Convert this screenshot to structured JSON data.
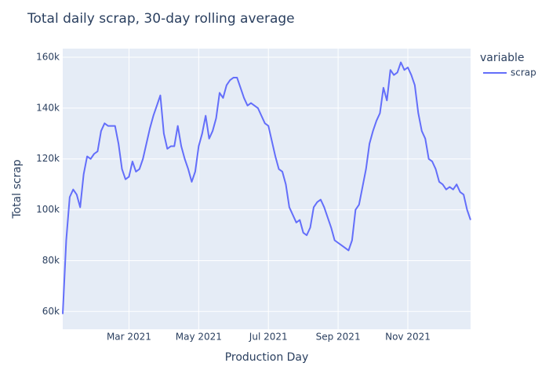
{
  "chart_data": {
    "type": "line",
    "title": "Total daily scrap, 30-day rolling average",
    "x_label": "Production Day",
    "y_label": "Total scrap",
    "legend_title": "variable",
    "legend_position": "right",
    "grid": true,
    "categories": [
      null,
      null,
      null,
      null,
      null,
      null,
      null,
      null,
      null,
      null,
      null,
      null,
      null,
      null,
      null,
      null,
      null,
      null,
      null,
      "Mar 2021",
      null,
      null,
      null,
      null,
      null,
      null,
      null,
      null,
      null,
      null,
      null,
      null,
      null,
      null,
      null,
      null,
      null,
      null,
      null,
      "May 2021",
      null,
      null,
      null,
      null,
      null,
      null,
      null,
      null,
      null,
      null,
      null,
      null,
      null,
      null,
      null,
      null,
      null,
      null,
      null,
      "Jul 2021",
      null,
      null,
      null,
      null,
      null,
      null,
      null,
      null,
      null,
      null,
      null,
      null,
      null,
      null,
      null,
      null,
      null,
      null,
      null,
      "Sep 2021",
      null,
      null,
      null,
      null,
      null,
      null,
      null,
      null,
      null,
      null,
      null,
      null,
      null,
      null,
      null,
      null,
      null,
      null,
      null,
      "Nov 2021",
      null,
      null,
      null,
      null,
      null,
      null,
      null,
      null,
      null,
      null,
      null,
      null,
      null,
      null,
      null,
      null,
      null,
      null
    ],
    "series": [
      {
        "name": "scrap",
        "color": "#636efa",
        "values": [
          59000,
          88000,
          105000,
          108000,
          106000,
          101000,
          114000,
          121000,
          120000,
          122000,
          123000,
          131000,
          134000,
          133000,
          133000,
          133000,
          126000,
          116000,
          112000,
          113000,
          119000,
          115000,
          116000,
          120000,
          126000,
          132000,
          137000,
          141000,
          145000,
          130000,
          124000,
          125000,
          125000,
          133000,
          125000,
          120000,
          116000,
          111000,
          115000,
          125000,
          130000,
          137000,
          128000,
          131000,
          136000,
          146000,
          144000,
          149000,
          151000,
          152000,
          152000,
          148000,
          144000,
          141000,
          142000,
          141000,
          140000,
          137000,
          134000,
          133000,
          127000,
          121000,
          116000,
          115000,
          110000,
          101000,
          98000,
          95000,
          96000,
          91000,
          90000,
          93000,
          101000,
          103000,
          104000,
          101000,
          97000,
          93000,
          88000,
          87000,
          86000,
          85000,
          84000,
          88000,
          100000,
          102000,
          109000,
          116000,
          126000,
          131000,
          135000,
          138000,
          148000,
          143000,
          155000,
          153000,
          154000,
          158000,
          155000,
          156000,
          153000,
          149000,
          138000,
          131000,
          128000,
          120000,
          119000,
          116000,
          111000,
          110000,
          108000,
          109000,
          108000,
          110000,
          107000,
          106000,
          100000,
          96000
        ]
      }
    ],
    "ylim": [
      53000,
      163400
    ],
    "yticks": [
      {
        "value": 60000,
        "label": "60k"
      },
      {
        "value": 80000,
        "label": "80k"
      },
      {
        "value": 100000,
        "label": "100k"
      },
      {
        "value": 120000,
        "label": "120k"
      },
      {
        "value": 140000,
        "label": "140k"
      },
      {
        "value": 160000,
        "label": "160k"
      }
    ]
  }
}
